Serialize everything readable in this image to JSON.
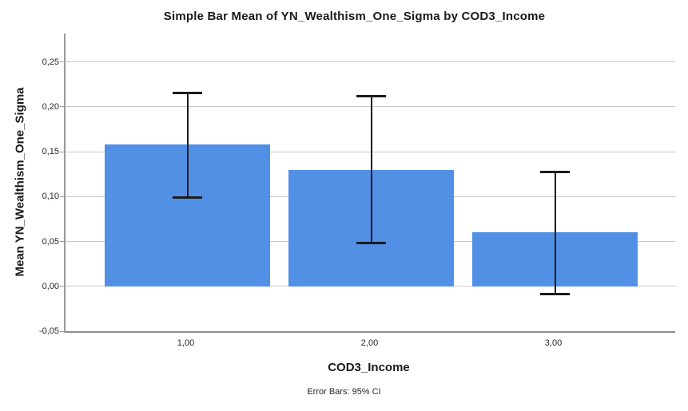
{
  "figure": {
    "title": "Simple Bar Mean of YN_Wealthism_One_Sigma by COD3_Income",
    "footnote": "Error Bars: 95% CI"
  },
  "chart_data": {
    "type": "bar",
    "title": "Simple Bar Mean of YN_Wealthism_One_Sigma by COD3_Income",
    "xlabel": "COD3_Income",
    "ylabel": "Mean YN_Wealthism_One_Sigma",
    "categories": [
      "1,00",
      "2,00",
      "3,00"
    ],
    "series": [
      {
        "name": "Mean YN_Wealthism_One_Sigma",
        "values": [
          0.158,
          0.13,
          0.06
        ],
        "ci95_upper": [
          0.216,
          0.212,
          0.128
        ],
        "ci95_lower": [
          0.099,
          0.049,
          -0.008
        ]
      }
    ],
    "ylim": [
      -0.05,
      0.25
    ],
    "yticks": [
      -0.05,
      0.0,
      0.05,
      0.1,
      0.15,
      0.2,
      0.25
    ],
    "ytick_labels": [
      "-0,05",
      "0,00",
      "0,05",
      "0,10",
      "0,15",
      "0,20",
      "0,25"
    ],
    "grid": true,
    "legend_position": "none",
    "error_bar_note": "Error Bars: 95% CI",
    "bar_color": "#5290E5",
    "error_bar_color": "#1c1c1c"
  },
  "colors": {
    "background": "#FFFFFF",
    "gridline": "#C8C8C8",
    "axis_line": "#9A9A9A",
    "text": "#1A1A1A"
  }
}
